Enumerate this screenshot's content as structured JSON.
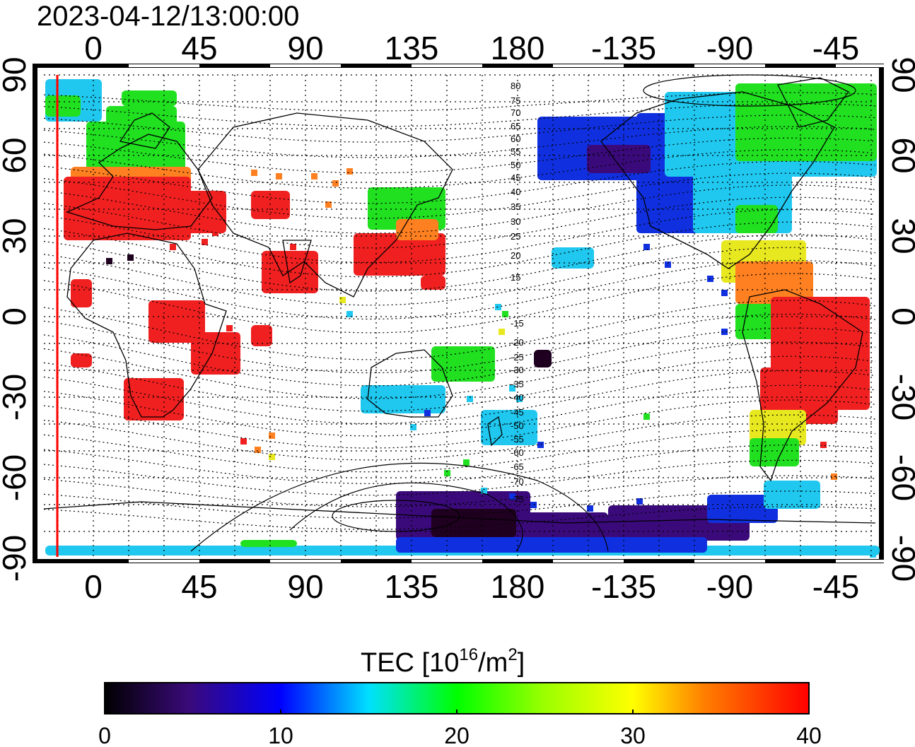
{
  "title": "2023-04-12/13:00:00",
  "x_ticks": [
    "0",
    "45",
    "90",
    "135",
    "180",
    "-135",
    "-90",
    "-45"
  ],
  "y_ticks": [
    "90",
    "60",
    "30",
    "0",
    "-30",
    "-60",
    "-90"
  ],
  "colorbar": {
    "label_prefix": "TEC  [10",
    "label_sup1": "16",
    "label_mid": "/m",
    "label_sup2": "2",
    "label_suffix": "]",
    "ticks": [
      "0",
      "10",
      "20",
      "30",
      "40"
    ],
    "colors": [
      "#000000",
      "#3a0a7a",
      "#0000ff",
      "#00e0ff",
      "#00ff00",
      "#ffff00",
      "#ff8000",
      "#ff0000"
    ]
  },
  "contour_labels": [
    "80",
    "75",
    "70",
    "65",
    "60",
    "55",
    "50",
    "45",
    "40",
    "35",
    "30",
    "25",
    "20",
    "15",
    "-15",
    "-20",
    "-25",
    "-30",
    "-35",
    "-40",
    "-45",
    "-50",
    "-55",
    "-60",
    "-65",
    "-70",
    "-75"
  ],
  "tec_colors": {
    "low": "#3a0a7a",
    "blue": "#1030e0",
    "cyan": "#20c8f0",
    "green": "#20e020",
    "yellow": "#e8e820",
    "orange": "#ff8020",
    "red": "#f02020",
    "dark": "#200020"
  },
  "terminator_color": "#ff0000"
}
